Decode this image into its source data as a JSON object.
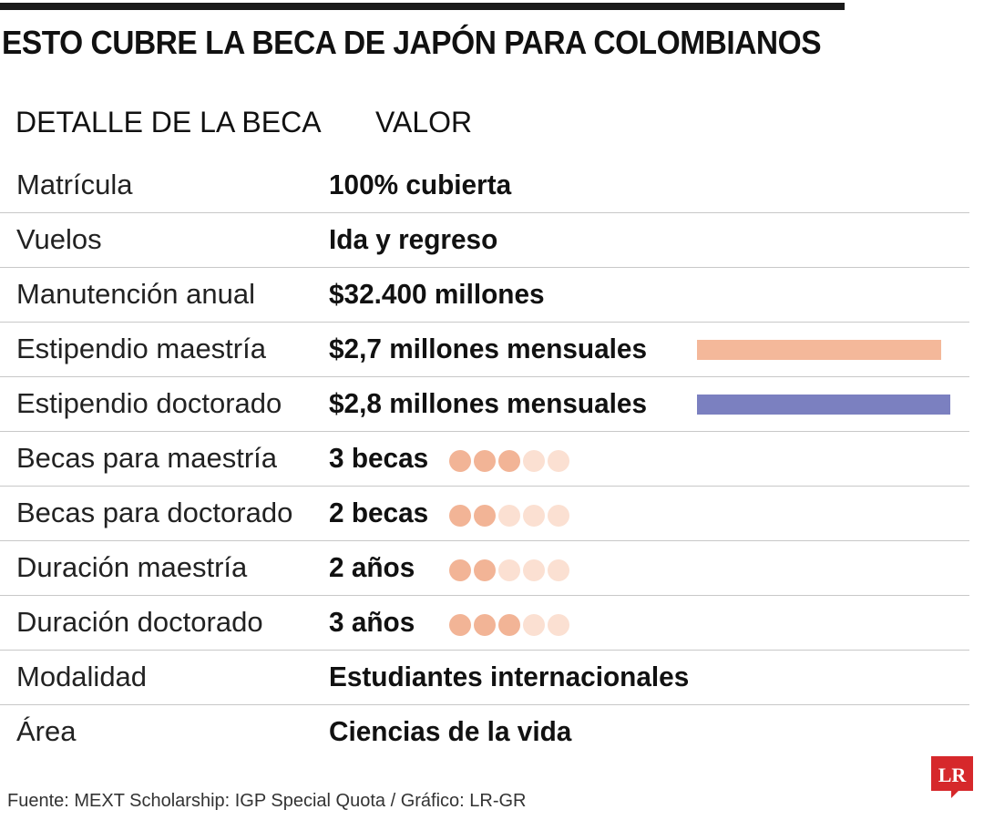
{
  "title": "ESTO CUBRE LA BECA DE JAPÓN PARA COLOMBIANOS",
  "headers": {
    "detail": "DETALLE DE LA BECA",
    "value": "VALOR"
  },
  "rows": [
    {
      "label": "Matrícula",
      "value": "100% cubierta"
    },
    {
      "label": "Vuelos",
      "value": "Ida y regreso"
    },
    {
      "label": "Manutención anual",
      "value": "$32.400 millones"
    },
    {
      "label": "Estipendio maestría",
      "value": "$2,7 millones mensuales"
    },
    {
      "label": "Estipendio doctorado",
      "value": "$2,8 millones mensuales"
    },
    {
      "label": "Becas para maestría",
      "value": "3 becas"
    },
    {
      "label": "Becas para doctorado",
      "value": "2 becas"
    },
    {
      "label": "Duración maestría",
      "value": "2 años"
    },
    {
      "label": "Duración doctorado",
      "value": "3 años"
    },
    {
      "label": "Modalidad",
      "value": "Estudiantes internacionales"
    },
    {
      "label": "Área",
      "value": "Ciencias de la vida"
    }
  ],
  "source": "Fuente: MEXT Scholarship: IGP Special Quota / Gráfico: LR-GR",
  "logo_text": "LR",
  "colors": {
    "bar_maestria": "#f4b89a",
    "bar_doctorado": "#7b80c0",
    "dot_filled": "#f2b496",
    "dot_empty": "#fbe0d2",
    "logo": "#d6282b"
  },
  "chart_data": [
    {
      "type": "bar",
      "categories": [
        "Estipendio maestría",
        "Estipendio doctorado"
      ],
      "values": [
        2.7,
        2.8
      ],
      "ylim": [
        0,
        2.8
      ]
    },
    {
      "type": "table",
      "categories": [
        "Becas para maestría",
        "Becas para doctorado",
        "Duración maestría",
        "Duración doctorado"
      ],
      "values": [
        3,
        2,
        2,
        3
      ],
      "ylim": [
        0,
        5
      ]
    }
  ]
}
